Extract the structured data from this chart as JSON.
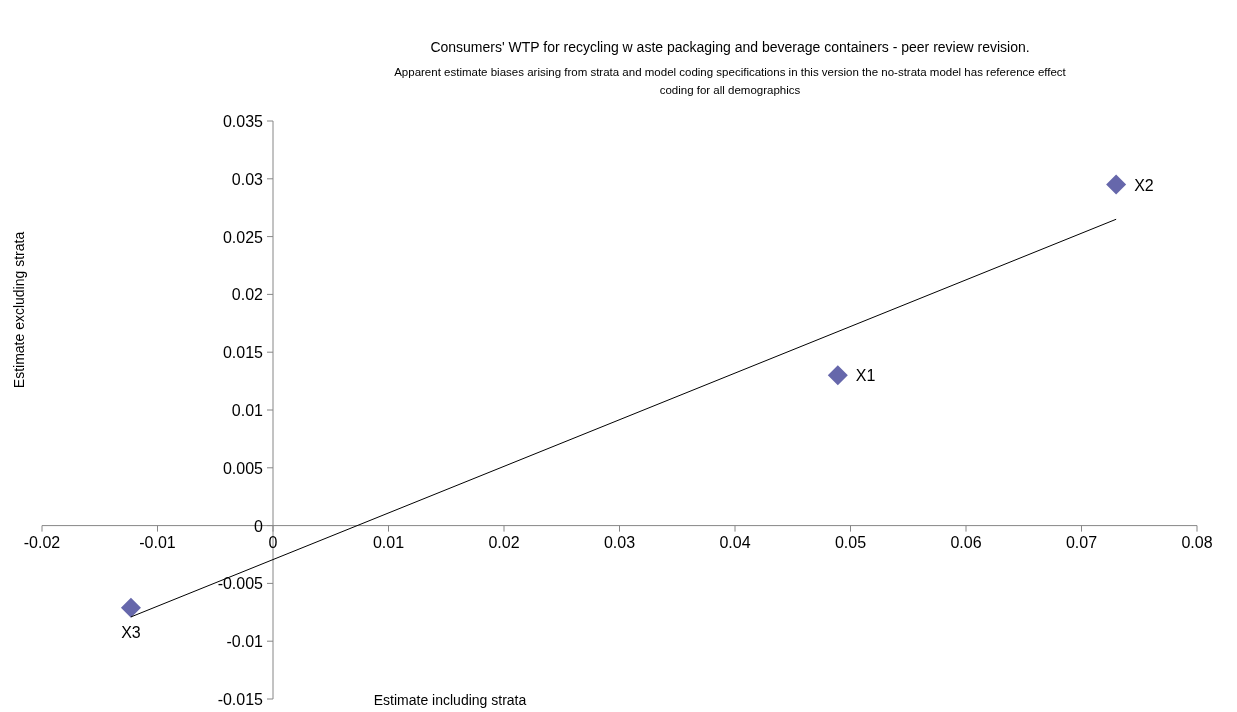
{
  "chart_data": {
    "type": "scatter",
    "title": "Consumers' WTP for recycling w aste packaging and beverage containers - peer review  revision.",
    "subtitle": "Apparent estimate biases arising from strata and model coding specifications in this version the no-strata model has reference effect coding for all demographics",
    "xlabel": "Estimate including strata",
    "ylabel": "Estimate excluding strata",
    "x": [
      0.0489,
      0.073,
      -0.0123
    ],
    "series": [
      {
        "type": "scatter",
        "color": "#6667ab",
        "values": [
          0.013,
          0.0295,
          -0.0071
        ],
        "marker": "diamond"
      },
      {
        "type": "line",
        "color": "#000000",
        "x": [
          -0.0123,
          0.073
        ],
        "values": [
          -0.0079,
          0.0265
        ],
        "marker": "none"
      }
    ],
    "annotations": [
      {
        "text": "X1",
        "x": 0.0489,
        "y": 0.013
      },
      {
        "text": "X2",
        "x": 0.073,
        "y": 0.0295
      },
      {
        "text": "X3",
        "x": -0.0123,
        "y": -0.0071
      }
    ],
    "xlim": [
      -0.02,
      0.08
    ],
    "xticks": [
      -0.02,
      -0.01,
      0,
      0.01,
      0.02,
      0.03,
      0.04,
      0.05,
      0.06,
      0.07,
      0.08
    ],
    "ylim": [
      -0.015,
      0.035
    ],
    "yticks": [
      -0.015,
      -0.01,
      -0.005,
      0,
      0.005,
      0.01,
      0.015,
      0.02,
      0.025,
      0.03,
      0.035
    ],
    "grid": false
  }
}
